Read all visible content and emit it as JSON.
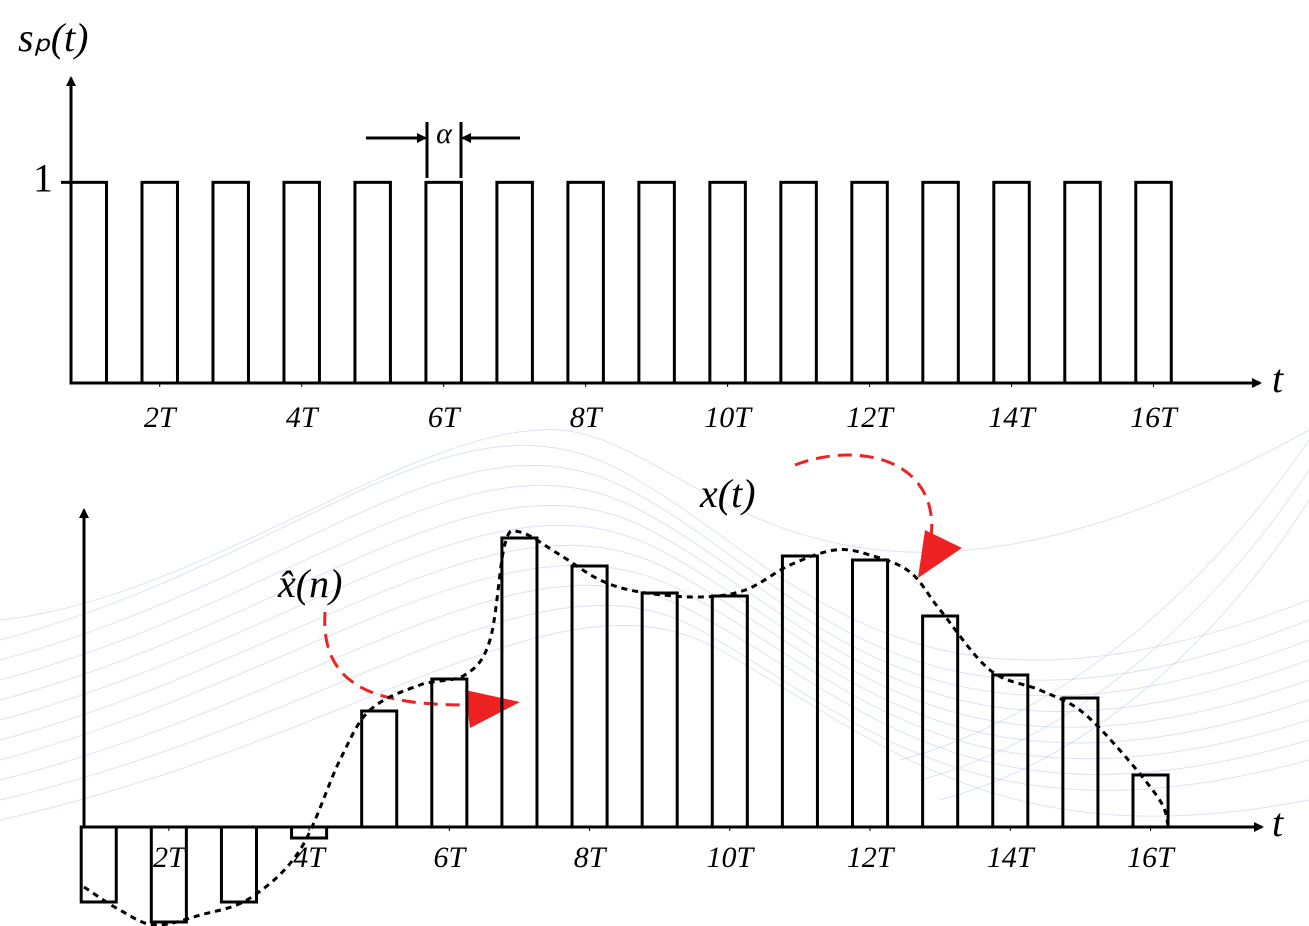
{
  "chart_data": [
    {
      "type": "bar",
      "y_label": "sₚ(t)",
      "x_label": "t",
      "width_label": "α",
      "x": [
        1,
        2,
        3,
        4,
        5,
        6,
        7,
        8,
        9,
        10,
        11,
        12,
        13,
        14,
        15,
        16
      ],
      "values": [
        1,
        1,
        1,
        1,
        1,
        1,
        1,
        1,
        1,
        1,
        1,
        1,
        1,
        1,
        1,
        1
      ],
      "bar_width": 0.5,
      "color": "#000000",
      "xlim": [
        0.75,
        17.5
      ],
      "ylim": [
        0,
        1.52
      ],
      "xticks": [
        {
          "value": 2,
          "label": "2T"
        },
        {
          "value": 4,
          "label": "4T"
        },
        {
          "value": 6,
          "label": "6T"
        },
        {
          "value": 8,
          "label": "8T"
        },
        {
          "value": 10,
          "label": "10T"
        },
        {
          "value": 12,
          "label": "12T"
        },
        {
          "value": 14,
          "label": "14T"
        },
        {
          "value": 16,
          "label": "16T"
        }
      ],
      "yticks": [
        1
      ]
    },
    {
      "type": "bar",
      "x_label": "t",
      "x": [
        1,
        2,
        3,
        4,
        5,
        6,
        7,
        8,
        9,
        10,
        11,
        12,
        13,
        14,
        15,
        16
      ],
      "series": [
        {
          "name": "x̂(n)",
          "color": "#000000",
          "values": [
            -0.75,
            -0.95,
            -0.75,
            -0.11,
            1.16,
            1.48,
            2.89,
            2.61,
            2.34,
            2.31,
            2.71,
            2.67,
            2.11,
            1.52,
            1.29,
            0.52
          ]
        }
      ],
      "curve": {
        "name": "x(t)",
        "color": "#000000",
        "x": [
          0.79,
          1.3,
          1.8,
          2.45,
          3.16,
          3.87,
          4.44,
          4.87,
          5.58,
          6.22,
          6.58,
          6.79,
          7.01,
          7.58,
          8.15,
          8.72,
          9.57,
          10.22,
          10.86,
          11.5,
          12.0,
          12.57,
          13.0,
          13.71,
          14.42,
          14.99,
          15.56,
          16.13,
          16.25
        ],
        "values": [
          -0.6,
          -0.83,
          -0.98,
          -0.88,
          -0.71,
          -0.23,
          0.67,
          1.17,
          1.42,
          1.52,
          1.87,
          2.82,
          2.95,
          2.72,
          2.47,
          2.35,
          2.3,
          2.37,
          2.62,
          2.77,
          2.72,
          2.55,
          2.17,
          1.57,
          1.37,
          1.17,
          0.77,
          0.27,
          0.02
        ]
      },
      "bar_width": 0.5,
      "xlim": [
        0.79,
        17.59
      ],
      "ylim": [
        -1.03,
        3.17
      ],
      "xticks": [
        {
          "value": 2,
          "label": "2T"
        },
        {
          "value": 4,
          "label": "4T"
        },
        {
          "value": 6,
          "label": "6T"
        },
        {
          "value": 8,
          "label": "8T"
        },
        {
          "value": 10,
          "label": "10T"
        },
        {
          "value": 12,
          "label": "12T"
        },
        {
          "value": 14,
          "label": "14T"
        },
        {
          "value": 16,
          "label": "16T"
        }
      ]
    }
  ]
}
